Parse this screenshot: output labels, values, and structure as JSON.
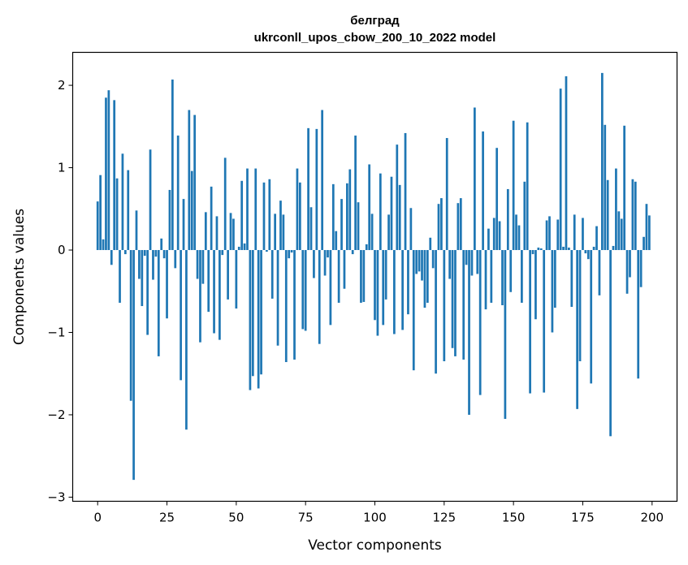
{
  "chart_data": {
    "type": "bar",
    "title": "белград",
    "subtitle": "ukrconll_upos_cbow_200_10_2022 model",
    "xlabel": "Vector components",
    "ylabel": "Components values",
    "xlim": [
      -9,
      209
    ],
    "ylim": [
      -3.05,
      2.4
    ],
    "x_ticks": [
      0,
      25,
      50,
      75,
      100,
      125,
      150,
      175,
      200
    ],
    "y_ticks": [
      -3,
      -2,
      -1,
      0,
      1,
      2
    ],
    "x_tick_labels": [
      "0",
      "25",
      "50",
      "75",
      "100",
      "125",
      "150",
      "175",
      "200"
    ],
    "y_tick_labels": [
      "−3",
      "−2",
      "−1",
      "0",
      "1",
      "2"
    ],
    "grid": false,
    "bar_color": "#1f77b4",
    "values": [
      0.59,
      0.91,
      0.13,
      1.85,
      1.94,
      -0.18,
      1.82,
      0.87,
      -0.64,
      1.17,
      -0.05,
      0.97,
      -1.83,
      -2.79,
      0.48,
      -0.35,
      -0.68,
      -0.07,
      -1.03,
      1.22,
      -0.36,
      -0.08,
      -1.29,
      0.14,
      -0.1,
      -0.83,
      0.73,
      2.07,
      -0.22,
      1.39,
      -1.58,
      0.62,
      -2.18,
      1.7,
      0.96,
      1.64,
      -0.35,
      -1.12,
      -0.41,
      0.46,
      -0.75,
      0.77,
      -1.01,
      0.41,
      -1.09,
      -0.06,
      1.12,
      -0.6,
      0.45,
      0.38,
      -0.71,
      0.04,
      0.84,
      0.08,
      0.99,
      -1.7,
      -1.53,
      0.99,
      -1.68,
      -1.51,
      0.82,
      -0.02,
      0.86,
      -0.59,
      0.44,
      -1.16,
      0.6,
      0.43,
      -1.36,
      -0.1,
      -0.03,
      -1.33,
      0.99,
      0.82,
      -0.96,
      -0.98,
      1.48,
      0.52,
      -0.34,
      1.47,
      -1.14,
      1.7,
      -0.31,
      -0.09,
      -0.91,
      0.8,
      0.23,
      -0.64,
      0.62,
      -0.47,
      0.81,
      0.98,
      -0.05,
      1.39,
      0.58,
      -0.64,
      -0.63,
      0.07,
      1.04,
      0.44,
      -0.85,
      -1.04,
      0.93,
      -0.91,
      -0.6,
      0.43,
      0.89,
      -1.02,
      1.28,
      0.79,
      -0.97,
      1.42,
      -0.78,
      0.51,
      -1.46,
      -0.29,
      -0.26,
      -0.37,
      -0.7,
      -0.64,
      0.15,
      -0.22,
      -1.5,
      0.56,
      0.63,
      -1.35,
      1.36,
      -0.35,
      -1.19,
      -1.29,
      0.57,
      0.63,
      -1.33,
      -0.18,
      -2.0,
      -0.31,
      1.73,
      -0.29,
      -1.76,
      1.44,
      -0.72,
      0.26,
      -0.64,
      0.39,
      1.24,
      0.35,
      -0.67,
      -2.05,
      0.74,
      -0.51,
      1.57,
      0.43,
      0.3,
      -0.64,
      0.83,
      1.55,
      -1.74,
      -0.05,
      -0.84,
      0.03,
      0.02,
      -1.73,
      0.36,
      0.41,
      -1.0,
      -0.7,
      0.37,
      1.96,
      0.04,
      2.11,
      0.03,
      -0.69,
      0.43,
      -1.93,
      -1.35,
      0.39,
      -0.04,
      -0.11,
      -1.62,
      0.04,
      0.29,
      -0.55,
      2.15,
      1.52,
      0.85,
      -2.26,
      0.05,
      0.99,
      0.47,
      0.38,
      1.51,
      -0.53,
      -0.33,
      0.86,
      0.83,
      -1.56,
      -0.45,
      0.16,
      0.56,
      0.42
    ]
  }
}
